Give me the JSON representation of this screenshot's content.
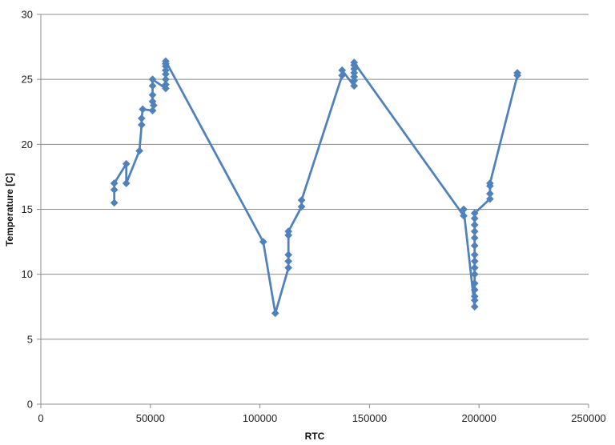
{
  "chart_data": {
    "type": "scatter",
    "title": "",
    "xlabel": "RTC",
    "ylabel": "Temperature [C]",
    "xlim": [
      0,
      250000
    ],
    "ylim": [
      0,
      30
    ],
    "xticks": [
      0,
      50000,
      100000,
      150000,
      200000,
      250000
    ],
    "yticks": [
      0,
      5,
      10,
      15,
      20,
      25,
      30
    ],
    "grid": "horizontal",
    "legend": "none",
    "series": [
      {
        "marker": "diamond",
        "line": true,
        "color": "#4F81BD",
        "points": [
          [
            33500,
            15.5
          ],
          [
            33500,
            16.5
          ],
          [
            33500,
            17.0
          ],
          [
            39000,
            18.5
          ],
          [
            39000,
            17.0
          ],
          [
            45000,
            19.5
          ],
          [
            46000,
            21.5
          ],
          [
            46000,
            22.0
          ],
          [
            46500,
            22.7
          ],
          [
            51000,
            22.6
          ],
          [
            51500,
            23.0
          ],
          [
            51000,
            23.3
          ],
          [
            51000,
            23.8
          ],
          [
            51000,
            24.5
          ],
          [
            51000,
            25.0
          ],
          [
            57000,
            24.3
          ],
          [
            57000,
            24.6
          ],
          [
            57000,
            25.0
          ],
          [
            57000,
            25.4
          ],
          [
            57000,
            25.7
          ],
          [
            57000,
            26.0
          ],
          [
            57000,
            26.2
          ],
          [
            57000,
            26.4
          ],
          [
            101500,
            12.5
          ],
          [
            107000,
            7.0
          ],
          [
            113000,
            10.5
          ],
          [
            113000,
            11.0
          ],
          [
            113000,
            11.5
          ],
          [
            113000,
            13.0
          ],
          [
            113000,
            13.3
          ],
          [
            119000,
            15.2
          ],
          [
            119000,
            15.7
          ],
          [
            137500,
            25.3
          ],
          [
            137500,
            25.7
          ],
          [
            143000,
            24.5
          ],
          [
            143000,
            24.9
          ],
          [
            143000,
            25.2
          ],
          [
            143000,
            25.5
          ],
          [
            143000,
            25.8
          ],
          [
            143000,
            26.1
          ],
          [
            143000,
            26.3
          ],
          [
            193000,
            14.5
          ],
          [
            193000,
            15.0
          ],
          [
            198000,
            7.5
          ],
          [
            198000,
            8.0
          ],
          [
            198000,
            8.3
          ],
          [
            198000,
            8.8
          ],
          [
            198000,
            9.3
          ],
          [
            198000,
            10.0
          ],
          [
            198000,
            10.5
          ],
          [
            198000,
            11.0
          ],
          [
            198000,
            11.5
          ],
          [
            198000,
            12.2
          ],
          [
            198000,
            12.8
          ],
          [
            198000,
            13.3
          ],
          [
            198000,
            13.8
          ],
          [
            198000,
            14.3
          ],
          [
            198000,
            14.7
          ],
          [
            205000,
            15.8
          ],
          [
            205000,
            16.2
          ],
          [
            205000,
            16.8
          ],
          [
            205000,
            17.0
          ],
          [
            217500,
            25.3
          ],
          [
            217500,
            25.5
          ]
        ]
      }
    ]
  }
}
